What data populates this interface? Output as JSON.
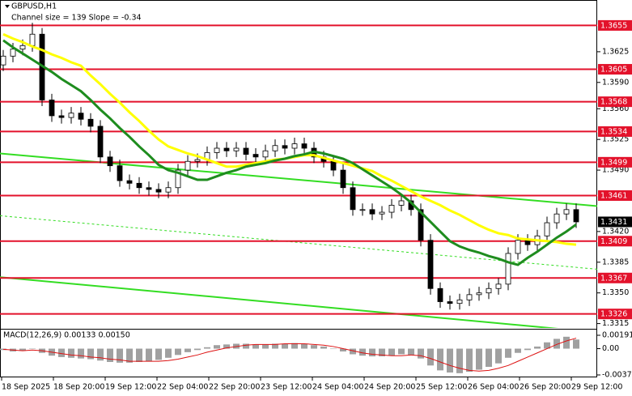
{
  "chart_data": {
    "type": "candlestick",
    "title": "GBPUSD,H1",
    "subtitle": "Channel size = 139 Slope = -0.34",
    "open": [
      1.361,
      1.362,
      1.3628,
      1.3632,
      1.3645,
      1.357,
      1.3552,
      1.355,
      1.3555,
      1.3548,
      1.354,
      1.3505,
      1.3495,
      1.3478,
      1.3475,
      1.347,
      1.3468,
      1.3465,
      1.347,
      1.349,
      1.35,
      1.3502,
      1.351,
      1.3515,
      1.3512,
      1.3515,
      1.3508,
      1.3505,
      1.3512,
      1.3518,
      1.3515,
      1.352,
      1.3515,
      1.3505,
      1.35,
      1.349,
      1.347,
      1.3445,
      1.3445,
      1.344,
      1.3442,
      1.345,
      1.3455,
      1.3445,
      1.341,
      1.3355,
      1.334,
      1.3338,
      1.3342,
      1.3348,
      1.335,
      1.3355,
      1.336,
      1.3395,
      1.341,
      1.3405,
      1.3415,
      1.343,
      1.344,
      1.3445
    ],
    "high": [
      1.3627,
      1.3635,
      1.3639,
      1.3658,
      1.3652,
      1.3577,
      1.3559,
      1.3562,
      1.3562,
      1.3555,
      1.3547,
      1.3512,
      1.3502,
      1.3485,
      1.3482,
      1.3477,
      1.3475,
      1.3477,
      1.3497,
      1.3507,
      1.3509,
      1.3517,
      1.3522,
      1.3522,
      1.3522,
      1.3522,
      1.3515,
      1.3519,
      1.3525,
      1.3525,
      1.3527,
      1.3527,
      1.3522,
      1.3512,
      1.3507,
      1.3497,
      1.3477,
      1.3452,
      1.3452,
      1.3449,
      1.3457,
      1.3462,
      1.3462,
      1.3452,
      1.3417,
      1.3362,
      1.3347,
      1.3349,
      1.3355,
      1.3357,
      1.3362,
      1.3367,
      1.3402,
      1.3417,
      1.3417,
      1.3422,
      1.3437,
      1.3447,
      1.3452,
      1.3452
    ],
    "low": [
      1.3603,
      1.3613,
      1.3621,
      1.3625,
      1.3563,
      1.3545,
      1.3543,
      1.3543,
      1.3541,
      1.3533,
      1.3498,
      1.3488,
      1.3471,
      1.3468,
      1.3463,
      1.3461,
      1.3458,
      1.3458,
      1.3463,
      1.3483,
      1.3493,
      1.3495,
      1.3503,
      1.3505,
      1.3505,
      1.3501,
      1.3498,
      1.3498,
      1.3505,
      1.3508,
      1.3508,
      1.3508,
      1.3498,
      1.3493,
      1.3483,
      1.3463,
      1.3438,
      1.3438,
      1.3433,
      1.3433,
      1.3435,
      1.3443,
      1.3438,
      1.3403,
      1.3348,
      1.3333,
      1.3331,
      1.3331,
      1.3335,
      1.3341,
      1.3343,
      1.3348,
      1.3353,
      1.3388,
      1.3398,
      1.3398,
      1.3408,
      1.3423,
      1.3433,
      1.3424
    ],
    "close": [
      1.362,
      1.3628,
      1.3632,
      1.3645,
      1.357,
      1.3552,
      1.355,
      1.3555,
      1.3548,
      1.354,
      1.3505,
      1.3495,
      1.3478,
      1.3475,
      1.347,
      1.3468,
      1.3465,
      1.347,
      1.349,
      1.35,
      1.3502,
      1.351,
      1.3515,
      1.3512,
      1.3515,
      1.3508,
      1.3505,
      1.3512,
      1.3518,
      1.3515,
      1.352,
      1.3515,
      1.3505,
      1.35,
      1.349,
      1.347,
      1.3445,
      1.3445,
      1.344,
      1.3442,
      1.345,
      1.3455,
      1.3445,
      1.341,
      1.3355,
      1.334,
      1.3338,
      1.3342,
      1.3348,
      1.335,
      1.3355,
      1.336,
      1.3395,
      1.341,
      1.3405,
      1.3415,
      1.343,
      1.344,
      1.3445,
      1.3431
    ],
    "up_color": "#ffffff",
    "down_color": "#000000",
    "series": [
      {
        "color": "#ffff00",
        "values": [
          1.3645,
          1.364,
          1.3636,
          1.3631,
          1.3627,
          1.3622,
          1.3618,
          1.3613,
          1.3609,
          1.3598,
          1.3588,
          1.3577,
          1.3567,
          1.3556,
          1.3546,
          1.3535,
          1.3525,
          1.3517,
          1.3513,
          1.3509,
          1.3506,
          1.3502,
          1.3498,
          1.3494,
          1.3494,
          1.3496,
          1.3498,
          1.35,
          1.3502,
          1.3503,
          1.3505,
          1.3507,
          1.3507,
          1.3504,
          1.3501,
          1.3498,
          1.3495,
          1.3492,
          1.3489,
          1.3483,
          1.3478,
          1.3472,
          1.3466,
          1.346,
          1.3455,
          1.345,
          1.3444,
          1.3439,
          1.3433,
          1.3427,
          1.3422,
          1.3418,
          1.3416,
          1.3412,
          1.3411,
          1.341,
          1.3409,
          1.3408,
          1.3406,
          1.3405
        ]
      },
      {
        "color": "#1e8c1e",
        "values": [
          1.3638,
          1.363,
          1.3623,
          1.3616,
          1.3609,
          1.3602,
          1.3594,
          1.3587,
          1.358,
          1.357,
          1.3559,
          1.3549,
          1.3538,
          1.3528,
          1.3517,
          1.3507,
          1.3496,
          1.349,
          1.3487,
          1.3483,
          1.3479,
          1.3479,
          1.3483,
          1.3487,
          1.349,
          1.3494,
          1.3496,
          1.3498,
          1.3501,
          1.3503,
          1.3506,
          1.3508,
          1.3511,
          1.3509,
          1.3506,
          1.3503,
          1.3498,
          1.3491,
          1.3484,
          1.3477,
          1.347,
          1.3462,
          1.3453,
          1.3442,
          1.3431,
          1.342,
          1.3409,
          1.3403,
          1.3399,
          1.3396,
          1.3392,
          1.3389,
          1.3385,
          1.3382,
          1.339,
          1.3397,
          1.3405,
          1.3413,
          1.342,
          1.3428
        ]
      }
    ],
    "ylim": [
      1.331,
      1.3684
    ],
    "yticks": [
      1.3625,
      {
        "value": 1.359,
        "label": "1.3590"
      },
      {
        "value": 1.356,
        "label": "1.3560"
      },
      1.3525,
      {
        "value": 1.349,
        "label": "1.3490"
      },
      {
        "value": 1.342,
        "label": "1.3420"
      },
      1.3385,
      {
        "value": 1.335,
        "label": "1.3350"
      },
      1.3315
    ],
    "levels": [
      1.3655,
      1.3605,
      1.3568,
      1.3534,
      1.3499,
      1.3461,
      1.3409,
      1.3367,
      1.3326
    ],
    "level_color": "#e3122b",
    "current_price": 1.3431,
    "channel": {
      "color": "#33dd22",
      "upper": [
        1.3509,
        1.3449
      ],
      "middle": [
        1.3438,
        1.3377
      ],
      "lower": [
        1.3368,
        1.3305
      ]
    },
    "xticks": [
      "18 Sep 2025",
      "18 Sep 20:00",
      "19 Sep 12:00",
      "22 Sep 04:00",
      "22 Sep 20:00",
      "23 Sep 12:00",
      "24 Sep 04:00",
      "24 Sep 20:00",
      "25 Sep 12:00",
      "26 Sep 04:00",
      "26 Sep 20:00",
      "29 Sep 12:00"
    ],
    "macd": {
      "label": "MACD(12,26,9) 0.00133 0.00150",
      "histogram": [
        -0.0002,
        -0.0004,
        -0.0003,
        0.0,
        -0.0006,
        -0.001,
        -0.0012,
        -0.0013,
        -0.0014,
        -0.0015,
        -0.0017,
        -0.0019,
        -0.002,
        -0.002,
        -0.0019,
        -0.0018,
        -0.0016,
        -0.0013,
        -0.0009,
        -0.0005,
        -0.0002,
        0.0002,
        0.0005,
        0.0006,
        0.0007,
        0.0007,
        0.0006,
        0.0006,
        0.0007,
        0.0007,
        0.0008,
        0.0007,
        0.0005,
        0.0003,
        0.0,
        -0.0004,
        -0.0008,
        -0.001,
        -0.0011,
        -0.0011,
        -0.001,
        -0.0008,
        -0.0009,
        -0.0014,
        -0.0024,
        -0.0031,
        -0.0034,
        -0.0035,
        -0.0033,
        -0.003,
        -0.0026,
        -0.0021,
        -0.0013,
        -0.0006,
        -0.0002,
        0.0003,
        0.0009,
        0.0014,
        0.0017,
        0.0013
      ],
      "signal": [
        -0.0001,
        -0.0002,
        -0.0003,
        -0.0002,
        -0.0003,
        -0.0005,
        -0.0007,
        -0.0009,
        -0.001,
        -0.0012,
        -0.0013,
        -0.0015,
        -0.0016,
        -0.0018,
        -0.0018,
        -0.0018,
        -0.0018,
        -0.0017,
        -0.0015,
        -0.0012,
        -0.0009,
        -0.0005,
        -0.0002,
        0.0001,
        0.0003,
        0.0005,
        0.0006,
        0.0006,
        0.0006,
        0.0007,
        0.0007,
        0.0007,
        0.0006,
        0.0005,
        0.0003,
        0.0,
        -0.0003,
        -0.0006,
        -0.0008,
        -0.0009,
        -0.001,
        -0.001,
        -0.0009,
        -0.001,
        -0.0014,
        -0.0019,
        -0.0024,
        -0.0028,
        -0.0031,
        -0.0032,
        -0.0031,
        -0.0028,
        -0.0024,
        -0.0018,
        -0.0012,
        -0.0006,
        0.0,
        0.0006,
        0.0011,
        0.0015
      ],
      "histogram_color": "#a0a0a0",
      "signal_color": "#dd1111",
      "ylim": [
        -0.00375,
        0.00191
      ],
      "yticks": [
        0.00191,
        {
          "value": 0,
          "label": "0.00"
        },
        -0.00375
      ]
    }
  }
}
